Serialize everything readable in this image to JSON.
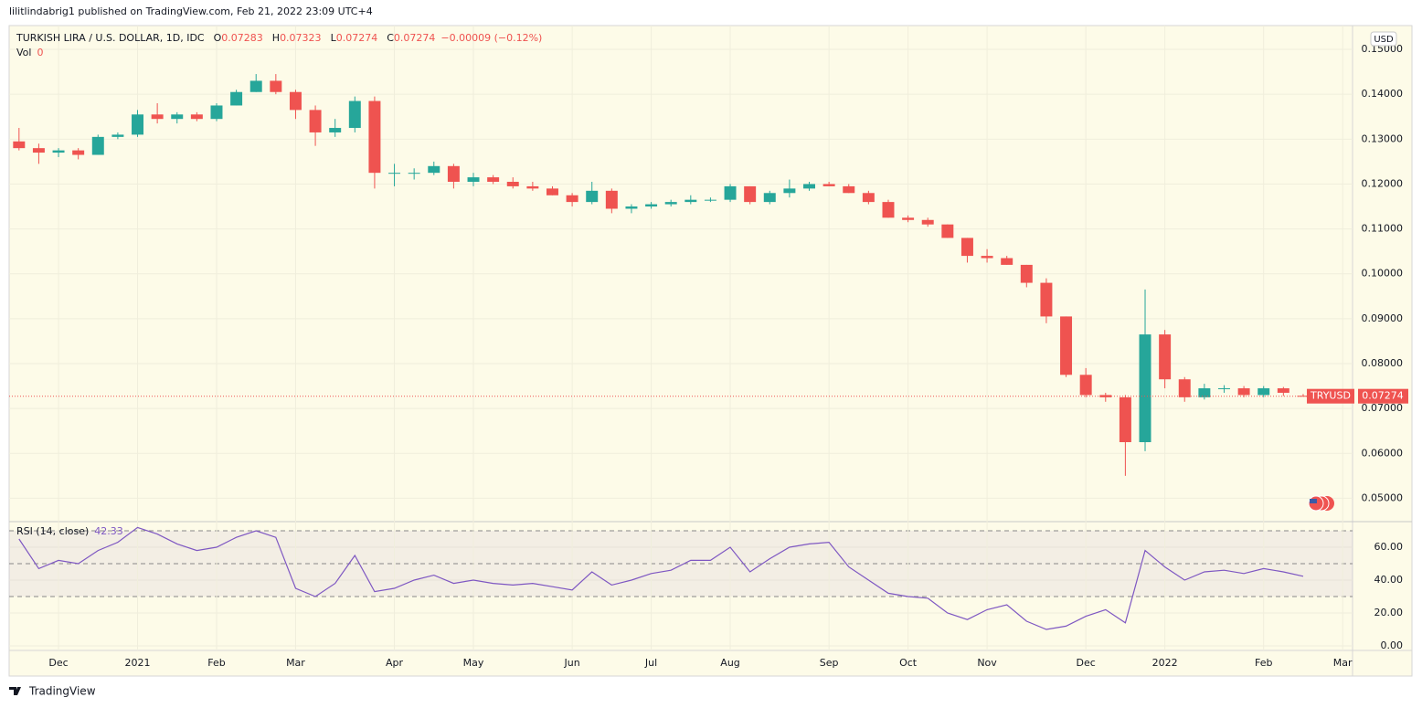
{
  "header": {
    "publisher_line": "lilitlindabrig1 published on TradingView.com, Feb 21, 2022 23:09 UTC+4",
    "brand": "TradingView"
  },
  "chart_data": {
    "type": "candlestick",
    "title": "TURKISH LIRA / U.S. DOLLAR, 1D, IDC",
    "legend": [
      {
        "key": "O",
        "value": "0.07283"
      },
      {
        "key": "H",
        "value": "0.07323"
      },
      {
        "key": "L",
        "value": "0.07274"
      },
      {
        "key": "C",
        "value": "0.07274"
      }
    ],
    "change": "−0.00009 (−0.12%)",
    "volume_label": "Vol",
    "volume_value": 0,
    "currency": "USD",
    "symbol_tag": "TRYUSD",
    "up_color": "#26a69a",
    "down_color": "#ef5350",
    "grid": true,
    "categories": [
      null,
      null,
      "Dec",
      null,
      null,
      null,
      "2021",
      null,
      null,
      null,
      "Feb",
      null,
      null,
      null,
      "Mar",
      null,
      null,
      null,
      null,
      "Apr",
      null,
      null,
      null,
      "May",
      null,
      null,
      null,
      null,
      "Jun",
      null,
      null,
      null,
      "Jul",
      null,
      null,
      null,
      "Aug",
      null,
      null,
      null,
      null,
      "Sep",
      null,
      null,
      null,
      "Oct",
      null,
      null,
      null,
      "Nov",
      null,
      null,
      null,
      null,
      "Dec",
      null,
      null,
      null,
      "2022",
      null,
      null,
      null,
      null,
      "Feb",
      null,
      null,
      null,
      "Mar"
    ],
    "open": [
      0.1295,
      0.128,
      0.127,
      0.1275,
      0.1265,
      0.1305,
      0.131,
      0.1355,
      0.1345,
      0.1355,
      0.1345,
      0.1375,
      0.1405,
      0.143,
      0.1405,
      0.1365,
      0.1315,
      0.1325,
      0.1385,
      0.1225,
      0.1225,
      0.1225,
      0.124,
      0.1205,
      0.1215,
      0.1205,
      0.1195,
      0.119,
      0.1175,
      0.116,
      0.1185,
      0.1145,
      0.115,
      0.1155,
      0.116,
      0.1165,
      0.1165,
      0.1195,
      0.116,
      0.118,
      0.119,
      0.12,
      0.1195,
      0.118,
      0.116,
      0.1125,
      0.112,
      0.111,
      0.108,
      0.104,
      0.1035,
      0.102,
      0.098,
      0.0905,
      0.0775,
      0.073,
      0.0725,
      0.0625,
      0.0865,
      0.0765,
      0.0725,
      0.0745,
      0.0745,
      0.073,
      0.0745,
      0.07283,
      null,
      null
    ],
    "high": [
      0.1325,
      0.129,
      0.128,
      0.128,
      0.131,
      0.1315,
      0.1365,
      0.138,
      0.136,
      0.136,
      0.138,
      0.141,
      0.1445,
      0.1445,
      0.141,
      0.1375,
      0.1345,
      0.1395,
      0.1395,
      0.1245,
      0.1235,
      0.125,
      0.1245,
      0.1225,
      0.122,
      0.1215,
      0.1205,
      0.1195,
      0.118,
      0.1205,
      0.119,
      0.1155,
      0.116,
      0.1165,
      0.1175,
      0.117,
      0.12,
      0.1195,
      0.1185,
      0.121,
      0.1205,
      0.1205,
      0.12,
      0.1185,
      0.1165,
      0.113,
      0.1125,
      0.111,
      0.108,
      0.1055,
      0.104,
      0.102,
      0.099,
      0.0905,
      0.079,
      0.0735,
      0.073,
      0.0965,
      0.0875,
      0.077,
      0.0755,
      0.0752,
      0.075,
      0.075,
      0.0748,
      0.07323,
      null,
      null
    ],
    "low": [
      0.1275,
      0.1245,
      0.126,
      0.1255,
      0.1265,
      0.13,
      0.1305,
      0.1335,
      0.1335,
      0.134,
      0.134,
      0.1375,
      0.1405,
      0.14,
      0.1345,
      0.1285,
      0.1305,
      0.1315,
      0.119,
      0.1195,
      0.121,
      0.122,
      0.119,
      0.1195,
      0.12,
      0.119,
      0.1185,
      0.1175,
      0.115,
      0.1155,
      0.1135,
      0.1135,
      0.1145,
      0.115,
      0.1155,
      0.116,
      0.116,
      0.1155,
      0.1155,
      0.117,
      0.1185,
      0.1195,
      0.118,
      0.1155,
      0.1125,
      0.1115,
      0.1105,
      0.108,
      0.1025,
      0.1025,
      0.102,
      0.097,
      0.089,
      0.077,
      0.0725,
      0.0715,
      0.055,
      0.0605,
      0.0745,
      0.0715,
      0.072,
      0.0735,
      0.0725,
      0.0725,
      0.0728,
      0.07274,
      null,
      null
    ],
    "close": [
      0.128,
      0.127,
      0.1275,
      0.1265,
      0.1305,
      0.131,
      0.1355,
      0.1345,
      0.1355,
      0.1345,
      0.1375,
      0.1405,
      0.143,
      0.1405,
      0.1365,
      0.1315,
      0.1325,
      0.1385,
      0.1225,
      0.1225,
      0.1225,
      0.124,
      0.1205,
      0.1215,
      0.1205,
      0.1195,
      0.119,
      0.1175,
      0.116,
      0.1185,
      0.1145,
      0.115,
      0.1155,
      0.116,
      0.1165,
      0.1165,
      0.1195,
      0.116,
      0.118,
      0.119,
      0.12,
      0.1195,
      0.118,
      0.116,
      0.1125,
      0.112,
      0.111,
      0.108,
      0.104,
      0.1035,
      0.102,
      0.098,
      0.0905,
      0.0775,
      0.073,
      0.0725,
      0.0625,
      0.0865,
      0.0765,
      0.0725,
      0.0745,
      0.0745,
      0.073,
      0.0745,
      0.0735,
      0.07274,
      null,
      null
    ],
    "ylim": [
      0.045,
      0.1553
    ],
    "yticks": [
      {
        "value": 0.05,
        "label": "0.05000"
      },
      {
        "value": 0.06,
        "label": "0.06000"
      },
      {
        "value": 0.07,
        "label": "0.07000"
      },
      {
        "value": 0.08,
        "label": "0.08000"
      },
      {
        "value": 0.09,
        "label": "0.09000"
      },
      {
        "value": 0.1,
        "label": "0.10000"
      },
      {
        "value": 0.11,
        "label": "0.11000"
      },
      {
        "value": 0.12,
        "label": "0.12000"
      },
      {
        "value": 0.13,
        "label": "0.13000"
      },
      {
        "value": 0.14,
        "label": "0.14000"
      },
      {
        "value": 0.15,
        "label": "0.15000"
      }
    ],
    "rsi": {
      "type": "line",
      "title": "RSI (14, close)",
      "color": "#7e57c2",
      "values": [
        65,
        47,
        52,
        50,
        58,
        63,
        72,
        68,
        62,
        58,
        60,
        66,
        70,
        66,
        35,
        30,
        38,
        55,
        33,
        35,
        40,
        43,
        38,
        40,
        38,
        37,
        38,
        36,
        34,
        45,
        37,
        40,
        44,
        46,
        52,
        52,
        60,
        45,
        53,
        60,
        62,
        63,
        48,
        40,
        32,
        30,
        29,
        20,
        16,
        22,
        25,
        15,
        10,
        12,
        18,
        22,
        14,
        58,
        48,
        40,
        45,
        46,
        44,
        47,
        45,
        42.33,
        null,
        null
      ],
      "ylim": [
        -2.8,
        75
      ],
      "yticks": [
        {
          "value": 0,
          "label": "0.00"
        },
        {
          "value": 20,
          "label": "20.00"
        },
        {
          "value": 40,
          "label": "40.00"
        },
        {
          "value": 60,
          "label": "60.00"
        }
      ],
      "bands": [
        70,
        50,
        30
      ]
    }
  }
}
